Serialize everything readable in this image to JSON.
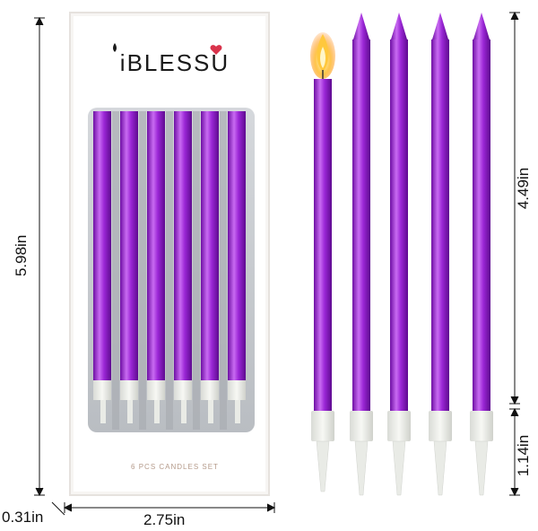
{
  "box": {
    "brand": "iBLESSU",
    "set_label": "6 PCS CANDLES SET"
  },
  "dimensions": {
    "box_height": "5.98in",
    "box_width": "2.75in",
    "box_depth": "0.31in",
    "candle_length": "4.49in",
    "holder_length": "1.14in"
  },
  "colors": {
    "candle": "#9b27d6",
    "candle_dark": "#6d0fa3",
    "candle_light": "#c96bf2",
    "heart": "#d9334b",
    "flame": "#ffb43a"
  }
}
